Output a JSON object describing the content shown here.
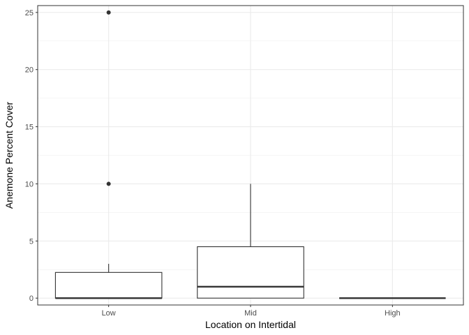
{
  "chart_data": {
    "type": "box",
    "categories": [
      "Low",
      "Mid",
      "High"
    ],
    "xlabel": "Location on Intertidal",
    "ylabel": "Anemone Percent Cover",
    "ylim": [
      -0.6,
      25.6
    ],
    "yticks": [
      0,
      5,
      10,
      15,
      20,
      25
    ],
    "grid": true,
    "boxes": [
      {
        "category": "Low",
        "lower_whisker": 0,
        "q1": 0,
        "median": 0,
        "q3": 2.25,
        "upper_whisker": 3,
        "outliers": [
          10,
          25
        ]
      },
      {
        "category": "Mid",
        "lower_whisker": 0,
        "q1": 0,
        "median": 1,
        "q3": 4.5,
        "upper_whisker": 10,
        "outliers": []
      },
      {
        "category": "High",
        "lower_whisker": 0,
        "q1": 0,
        "median": 0,
        "q3": 0,
        "upper_whisker": 0,
        "outliers": []
      }
    ],
    "colors": {
      "panel_border": "#333333",
      "grid": "#ebebeb",
      "box_line": "#333333",
      "box_fill": "#ffffff"
    }
  }
}
